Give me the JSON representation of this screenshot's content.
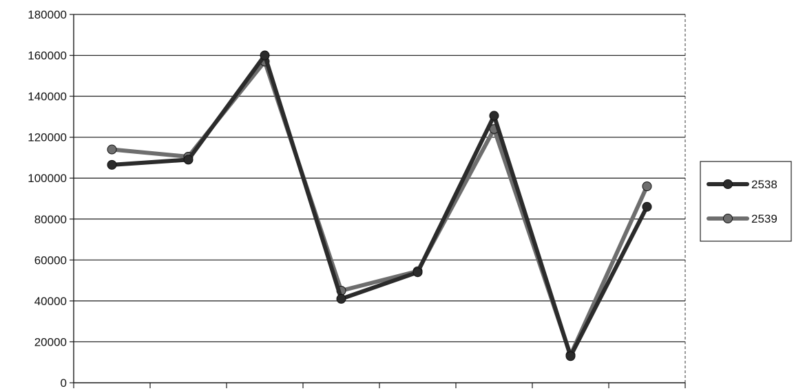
{
  "chart_data": {
    "type": "line",
    "title": "",
    "xlabel": "",
    "ylabel": "",
    "ylim": [
      0,
      180000
    ],
    "yticks": [
      0,
      20000,
      40000,
      60000,
      80000,
      100000,
      120000,
      140000,
      160000,
      180000
    ],
    "ytick_labels": [
      "0",
      "20000",
      "40000",
      "60000",
      "80000",
      "100000",
      "120000",
      "140000",
      "160000",
      "180000"
    ],
    "categories": [
      "",
      "",
      "",
      "",
      "",
      "",
      "",
      ""
    ],
    "grid": true,
    "legend_position": "right",
    "series": [
      {
        "name": "2538",
        "color": "#2b2b2b",
        "marker": "circle",
        "values": [
          106500,
          109000,
          160000,
          41000,
          54000,
          130500,
          13000,
          86000
        ]
      },
      {
        "name": "2539",
        "color": "#6e6e6e",
        "marker": "circle",
        "values": [
          114000,
          110500,
          157000,
          45000,
          54500,
          124000,
          13500,
          96000
        ]
      }
    ]
  }
}
